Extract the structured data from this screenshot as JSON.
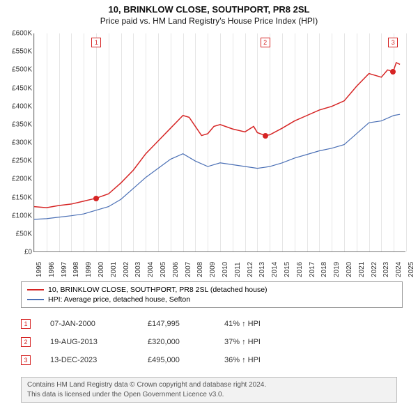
{
  "title": "10, BRINKLOW CLOSE, SOUTHPORT, PR8 2SL",
  "subtitle": "Price paid vs. HM Land Registry's House Price Index (HPI)",
  "chart": {
    "type": "line",
    "background_color": "#ffffff",
    "grid_color": "#e6e6e6",
    "axis_color": "#777777",
    "label_fontsize": 10,
    "x": {
      "min": 1995,
      "max": 2025,
      "ticks": [
        1995,
        1996,
        1997,
        1998,
        1999,
        2000,
        2001,
        2002,
        2003,
        2004,
        2005,
        2006,
        2007,
        2008,
        2009,
        2010,
        2011,
        2012,
        2013,
        2014,
        2015,
        2016,
        2017,
        2018,
        2019,
        2020,
        2021,
        2022,
        2023,
        2024,
        2025
      ]
    },
    "y": {
      "min": 0,
      "max": 600000,
      "tick_step": 50000,
      "tick_labels": [
        "£0",
        "£50K",
        "£100K",
        "£150K",
        "£200K",
        "£250K",
        "£300K",
        "£350K",
        "£400K",
        "£450K",
        "£500K",
        "£550K",
        "£600K"
      ]
    },
    "series": [
      {
        "name": "10, BRINKLOW CLOSE, SOUTHPORT, PR8 2SL (detached house)",
        "color": "#d62424",
        "line_width": 1.5,
        "points": [
          [
            1995,
            125000
          ],
          [
            1996,
            122000
          ],
          [
            1997,
            128000
          ],
          [
            1998,
            132000
          ],
          [
            1999,
            140000
          ],
          [
            2000,
            147995
          ],
          [
            2001,
            160000
          ],
          [
            2002,
            190000
          ],
          [
            2003,
            225000
          ],
          [
            2004,
            270000
          ],
          [
            2005,
            305000
          ],
          [
            2006,
            340000
          ],
          [
            2007,
            375000
          ],
          [
            2007.5,
            370000
          ],
          [
            2008,
            345000
          ],
          [
            2008.5,
            320000
          ],
          [
            2009,
            325000
          ],
          [
            2009.5,
            345000
          ],
          [
            2010,
            350000
          ],
          [
            2011,
            338000
          ],
          [
            2012,
            330000
          ],
          [
            2012.7,
            345000
          ],
          [
            2013,
            328000
          ],
          [
            2013.63,
            320000
          ],
          [
            2014,
            322000
          ],
          [
            2015,
            340000
          ],
          [
            2016,
            360000
          ],
          [
            2017,
            375000
          ],
          [
            2018,
            390000
          ],
          [
            2019,
            400000
          ],
          [
            2020,
            415000
          ],
          [
            2021,
            455000
          ],
          [
            2022,
            490000
          ],
          [
            2023,
            480000
          ],
          [
            2023.5,
            500000
          ],
          [
            2023.95,
            495000
          ],
          [
            2024.2,
            520000
          ],
          [
            2024.5,
            515000
          ]
        ]
      },
      {
        "name": "HPI: Average price, detached house, Sefton",
        "color": "#4a6fb5",
        "line_width": 1.2,
        "points": [
          [
            1995,
            90000
          ],
          [
            1996,
            92000
          ],
          [
            1997,
            96000
          ],
          [
            1998,
            100000
          ],
          [
            1999,
            105000
          ],
          [
            2000,
            115000
          ],
          [
            2001,
            125000
          ],
          [
            2002,
            145000
          ],
          [
            2003,
            175000
          ],
          [
            2004,
            205000
          ],
          [
            2005,
            230000
          ],
          [
            2006,
            255000
          ],
          [
            2007,
            270000
          ],
          [
            2008,
            250000
          ],
          [
            2009,
            235000
          ],
          [
            2010,
            245000
          ],
          [
            2011,
            240000
          ],
          [
            2012,
            235000
          ],
          [
            2013,
            230000
          ],
          [
            2013.63,
            233000
          ],
          [
            2014,
            235000
          ],
          [
            2015,
            245000
          ],
          [
            2016,
            258000
          ],
          [
            2017,
            268000
          ],
          [
            2018,
            278000
          ],
          [
            2019,
            285000
          ],
          [
            2020,
            295000
          ],
          [
            2021,
            325000
          ],
          [
            2022,
            355000
          ],
          [
            2023,
            360000
          ],
          [
            2024,
            375000
          ],
          [
            2024.5,
            378000
          ]
        ]
      }
    ],
    "sale_markers": [
      {
        "index": 1,
        "x": 2000.02,
        "y": 147995,
        "color": "#d62424"
      },
      {
        "index": 2,
        "x": 2013.63,
        "y": 320000,
        "color": "#d62424"
      },
      {
        "index": 3,
        "x": 2023.95,
        "y": 495000,
        "color": "#d62424"
      }
    ]
  },
  "legend": {
    "items": [
      {
        "color": "#d62424",
        "label": "10, BRINKLOW CLOSE, SOUTHPORT, PR8 2SL (detached house)"
      },
      {
        "color": "#4a6fb5",
        "label": "HPI: Average price, detached house, Sefton"
      }
    ]
  },
  "sales": [
    {
      "index": 1,
      "color": "#d62424",
      "date": "07-JAN-2000",
      "price": "£147,995",
      "diff": "41% ↑ HPI"
    },
    {
      "index": 2,
      "color": "#d62424",
      "date": "19-AUG-2013",
      "price": "£320,000",
      "diff": "37% ↑ HPI"
    },
    {
      "index": 3,
      "color": "#d62424",
      "date": "13-DEC-2023",
      "price": "£495,000",
      "diff": "36% ↑ HPI"
    }
  ],
  "footer": {
    "line1": "Contains HM Land Registry data © Crown copyright and database right 2024.",
    "line2": "This data is licensed under the Open Government Licence v3.0."
  }
}
